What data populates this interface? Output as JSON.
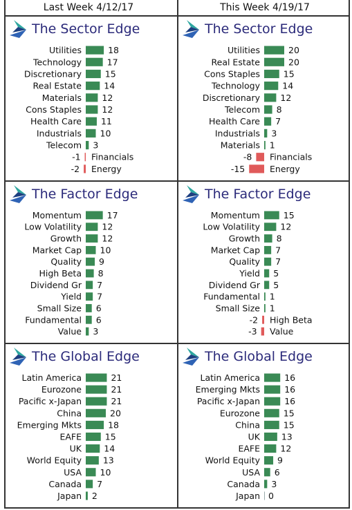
{
  "headers": {
    "left": "Last Week 4/12/17",
    "right": "This Week 4/19/17"
  },
  "colors": {
    "positive": "#3a8a55",
    "negative": "#e05a5a",
    "title": "#2b2a7a",
    "logo_blue": "#2f63b5",
    "logo_teal": "#2ea7a0"
  },
  "icons": {
    "logo": "rotating-arrow-logo-icon"
  },
  "chart_data": [
    {
      "type": "bar",
      "panel": "sector",
      "column": "left",
      "title": "The Sector Edge",
      "categories": [
        "Utilities",
        "Technology",
        "Discretionary",
        "Real Estate",
        "Materials",
        "Cons Staples",
        "Health Care",
        "Industrials",
        "Telecom",
        "Financials",
        "Energy"
      ],
      "values": [
        18,
        17,
        15,
        14,
        12,
        12,
        11,
        10,
        3,
        -1,
        -2
      ]
    },
    {
      "type": "bar",
      "panel": "sector",
      "column": "right",
      "title": "The Sector Edge",
      "categories": [
        "Utilities",
        "Real Estate",
        "Cons Staples",
        "Technology",
        "Discretionary",
        "Telecom",
        "Health Care",
        "Industrials",
        "Materials",
        "Financials",
        "Energy"
      ],
      "values": [
        20,
        20,
        15,
        14,
        12,
        8,
        7,
        3,
        1,
        -8,
        -15
      ]
    },
    {
      "type": "bar",
      "panel": "factor",
      "column": "left",
      "title": "The Factor Edge",
      "categories": [
        "Momentum",
        "Low Volatility",
        "Growth",
        "Market Cap",
        "Quality",
        "High Beta",
        "Dividend Gr",
        "Yield",
        "Small Size",
        "Fundamental",
        "Value"
      ],
      "values": [
        17,
        12,
        12,
        10,
        9,
        8,
        7,
        7,
        6,
        6,
        3
      ]
    },
    {
      "type": "bar",
      "panel": "factor",
      "column": "right",
      "title": "The Factor Edge",
      "categories": [
        "Momentum",
        "Low Volatility",
        "Growth",
        "Market Cap",
        "Quality",
        "Yield",
        "Dividend Gr",
        "Fundamental",
        "Small Size",
        "High Beta",
        "Value"
      ],
      "values": [
        15,
        12,
        8,
        7,
        7,
        5,
        5,
        1,
        1,
        -2,
        -3
      ]
    },
    {
      "type": "bar",
      "panel": "global",
      "column": "left",
      "title": "The Global Edge",
      "categories": [
        "Latin America",
        "Eurozone",
        "Pacific x-Japan",
        "China",
        "Emerging Mkts",
        "EAFE",
        "UK",
        "World Equity",
        "USA",
        "Canada",
        "Japan"
      ],
      "values": [
        21,
        21,
        21,
        20,
        18,
        15,
        14,
        13,
        10,
        7,
        2
      ]
    },
    {
      "type": "bar",
      "panel": "global",
      "column": "right",
      "title": "The Global Edge",
      "categories": [
        "Latin America",
        "Emerging Mkts",
        "Pacific x-Japan",
        "Eurozone",
        "China",
        "UK",
        "EAFE",
        "World Equity",
        "USA",
        "Canada",
        "Japan"
      ],
      "values": [
        16,
        16,
        16,
        15,
        15,
        13,
        12,
        9,
        6,
        3,
        0
      ]
    }
  ]
}
